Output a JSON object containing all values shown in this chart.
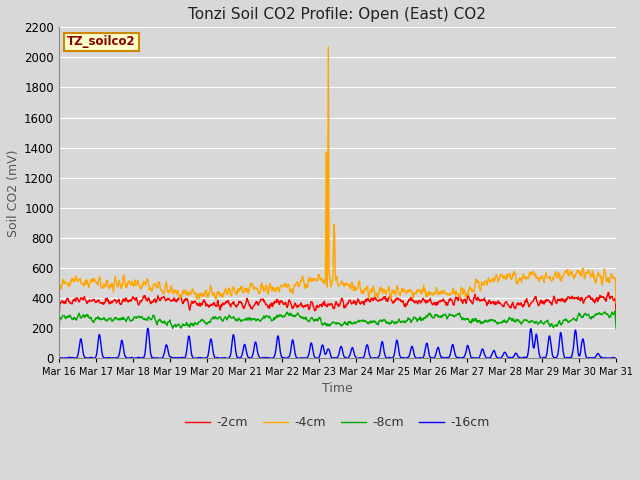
{
  "title": "Tonzi Soil CO2 Profile: Open (East) CO2",
  "xlabel": "Time",
  "ylabel": "Soil CO2 (mV)",
  "ylim": [
    0,
    2200
  ],
  "yticks": [
    0,
    200,
    400,
    600,
    800,
    1000,
    1200,
    1400,
    1600,
    1800,
    2000,
    2200
  ],
  "legend_labels": [
    "-2cm",
    "-4cm",
    "-8cm",
    "-16cm"
  ],
  "legend_colors": [
    "#ff0000",
    "#ffa500",
    "#00aa00",
    "#0000ff"
  ],
  "line_width": 1.0,
  "background_color": "#d8d8d8",
  "plot_bg_color": "#d8d8d8",
  "grid_color": "#ffffff",
  "title_fontsize": 11,
  "axis_fontsize": 9,
  "legend_box_color": "#ffffcc",
  "legend_box_edge": "#cc8800",
  "annotation_label": "TZ_soilco2",
  "annotation_color": "#880000",
  "x_tick_labels": [
    "Mar 16",
    "Mar 17",
    "Mar 18",
    "Mar 19",
    "Mar 20",
    "Mar 21",
    "Mar 22",
    "Mar 23",
    "Mar 24",
    "Mar 25",
    "Mar 26",
    "Mar 27",
    "Mar 28",
    "Mar 29",
    "Mar 30",
    "Mar 31"
  ]
}
